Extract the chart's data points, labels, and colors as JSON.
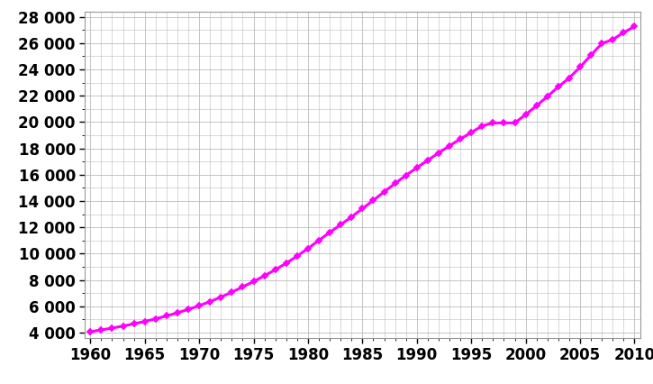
{
  "years": [
    1960,
    1961,
    1962,
    1963,
    1964,
    1965,
    1966,
    1967,
    1968,
    1969,
    1970,
    1971,
    1972,
    1973,
    1974,
    1975,
    1976,
    1977,
    1978,
    1979,
    1980,
    1981,
    1982,
    1983,
    1984,
    1985,
    1986,
    1987,
    1988,
    1989,
    1990,
    1991,
    1992,
    1993,
    1994,
    1995,
    1996,
    1997,
    1998,
    1999,
    2000,
    2001,
    2002,
    2003,
    2004,
    2005,
    2006,
    2007,
    2008,
    2009,
    2010
  ],
  "population": [
    4075,
    4205,
    4348,
    4503,
    4671,
    4854,
    5053,
    5271,
    5509,
    5769,
    6053,
    6359,
    6701,
    7078,
    7476,
    7890,
    8322,
    8783,
    9277,
    9815,
    10400,
    11011,
    11621,
    12200,
    12798,
    13424,
    14057,
    14699,
    15340,
    15952,
    16533,
    17100,
    17657,
    18197,
    18712,
    19210,
    19703,
    19938,
    19938,
    19938,
    20566,
    21241,
    21943,
    22678,
    23349,
    24175,
    25091,
    25971,
    26267,
    26803,
    27258
  ],
  "line_color": "#FF00FF",
  "marker_color": "#FF00FF",
  "marker_size": 4,
  "line_width": 2.2,
  "xlim": [
    1959.5,
    2010.5
  ],
  "ylim": [
    3600,
    28400
  ],
  "xtick_values": [
    1960,
    1965,
    1970,
    1975,
    1980,
    1985,
    1990,
    1995,
    2000,
    2005,
    2010
  ],
  "ytick_values": [
    4000,
    6000,
    8000,
    10000,
    12000,
    14000,
    16000,
    18000,
    20000,
    22000,
    24000,
    26000,
    28000
  ],
  "background_color": "#ffffff",
  "grid_color": "#bbbbbb",
  "tick_fontsize": 12,
  "tick_fontweight": "bold"
}
